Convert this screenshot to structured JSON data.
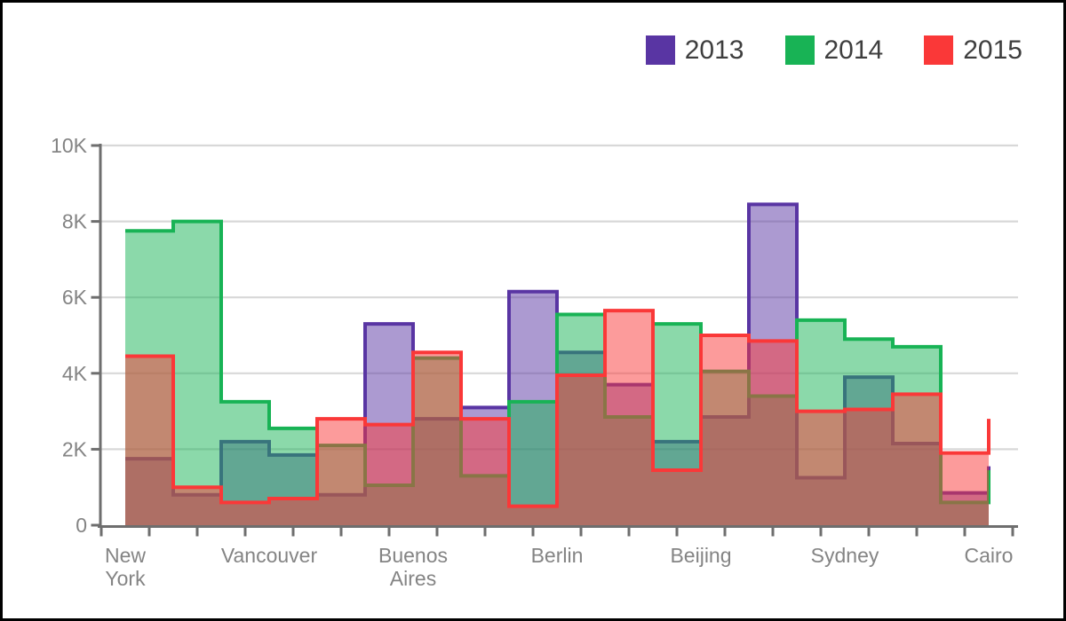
{
  "legend": {
    "items": [
      {
        "label": "2013",
        "color": "#5935A3"
      },
      {
        "label": "2014",
        "color": "#18B355"
      },
      {
        "label": "2015",
        "color": "#FA3838"
      }
    ]
  },
  "chart_data": {
    "type": "area",
    "step": true,
    "title": "",
    "xlabel": "",
    "ylabel": "",
    "categories": [
      "New York",
      "Vancouver",
      "Buenos Aires",
      "Berlin",
      "Beijing",
      "Sydney",
      "Cairo"
    ],
    "category_label_lines": [
      [
        "New",
        "York"
      ],
      [
        "Vancouver"
      ],
      [
        "Buenos",
        "Aires"
      ],
      [
        "Berlin"
      ],
      [
        "Beijing"
      ],
      [
        "Sydney"
      ],
      [
        "Cairo"
      ]
    ],
    "points_per_category": 3,
    "x_description": "19 step values per series: one at each city plus two intermediate thirds between cities; the final Cairo value is clipped at the right edge of the plot",
    "series": [
      {
        "name": "2013",
        "color": "#5935A3",
        "values": [
          1750,
          800,
          2200,
          1850,
          800,
          5300,
          2800,
          3100,
          6150,
          4550,
          3700,
          2200,
          2850,
          8450,
          1250,
          3900,
          2150,
          850,
          1550
        ]
      },
      {
        "name": "2014",
        "color": "#18B355",
        "values": [
          7750,
          8000,
          3250,
          2550,
          2100,
          1050,
          4400,
          1300,
          3250,
          5550,
          2850,
          5300,
          4050,
          3400,
          5400,
          4900,
          4700,
          600,
          1450
        ]
      },
      {
        "name": "2015",
        "color": "#FA3838",
        "values": [
          4450,
          1000,
          600,
          700,
          2800,
          2650,
          4550,
          2800,
          500,
          3950,
          5650,
          1450,
          5000,
          4850,
          3000,
          3050,
          3450,
          1900,
          2800
        ]
      }
    ],
    "fill_opacity": 0.5,
    "stroke_width": 4,
    "ylim": [
      0,
      10000
    ],
    "yticks": [
      {
        "value": 0,
        "label": "0"
      },
      {
        "value": 2000,
        "label": "2K"
      },
      {
        "value": 4000,
        "label": "4K"
      },
      {
        "value": 6000,
        "label": "6K"
      },
      {
        "value": 8000,
        "label": "8K"
      },
      {
        "value": 10000,
        "label": "10K"
      }
    ],
    "grid": true,
    "legend_position": "top-right"
  },
  "colors": {
    "axis": "#6E6E6E",
    "gridline": "#D8D8D8",
    "tick_label": "#848484",
    "legend_text": "#3E3E3E",
    "background": "#FFFFFF",
    "border": "#000000"
  }
}
